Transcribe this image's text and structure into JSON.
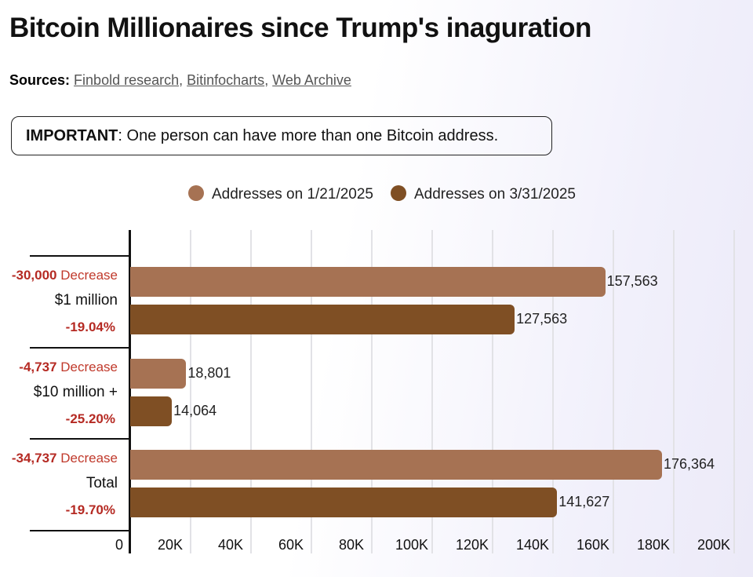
{
  "title": "Bitcoin Millionaires since Trump's inaguration",
  "sources": {
    "label": "Sources:",
    "links": [
      "Finbold research",
      "Bitinfocharts",
      "Web Archive"
    ]
  },
  "note": {
    "bold": "IMPORTANT",
    "text": ": One person can have more than one Bitcoin address."
  },
  "colors": {
    "series1": "#a67253",
    "series2": "#7f4f24",
    "decrease": "#b52a23"
  },
  "chart_data": {
    "type": "bar",
    "orientation": "horizontal",
    "categories": [
      "$1 million",
      "$10 million +",
      "Total"
    ],
    "series": [
      {
        "name": "Addresses on 1/21/2025",
        "values": [
          157563,
          18801,
          176364
        ],
        "labels": [
          "157,563",
          "18,801",
          "176,364"
        ]
      },
      {
        "name": "Addresses on 3/31/2025",
        "values": [
          127563,
          14064,
          141627
        ],
        "labels": [
          "127,563",
          "14,064",
          "141,627"
        ]
      }
    ],
    "changes": [
      {
        "amount": "-30,000",
        "word": "Decrease",
        "percent": "-19.04%"
      },
      {
        "amount": "-4,737",
        "word": "Decrease",
        "percent": "-25.20%"
      },
      {
        "amount": "-34,737",
        "word": "Decrease",
        "percent": "-19.70%"
      }
    ],
    "xlim": [
      0,
      200000
    ],
    "ticks": [
      "0",
      "20K",
      "40K",
      "60K",
      "80K",
      "100K",
      "120K",
      "140K",
      "160K",
      "180K",
      "200K"
    ],
    "grid": true,
    "legend": "top"
  }
}
